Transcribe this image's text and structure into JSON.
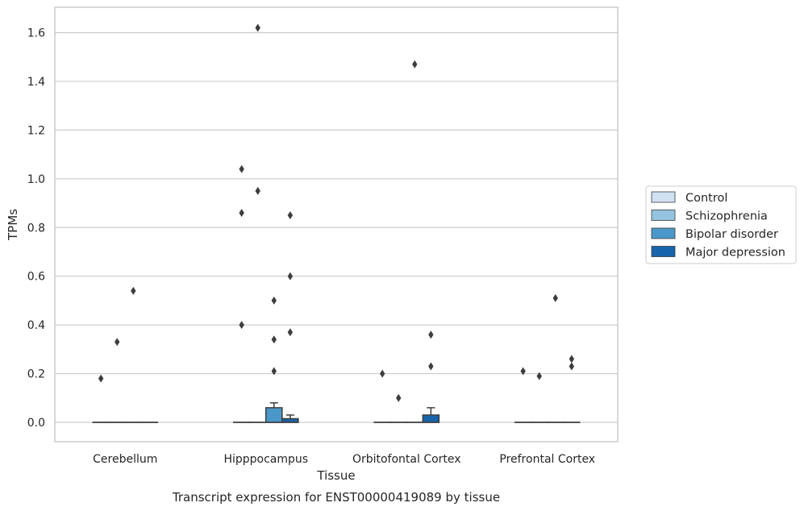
{
  "chart_data": {
    "type": "box",
    "title": "",
    "caption": "Transcript expression for ENST00000419089 by tissue",
    "xlabel": "Tissue",
    "ylabel": "TPMs",
    "ylim": [
      -0.08,
      1.7
    ],
    "yticks": [
      "0.0",
      "0.2",
      "0.4",
      "0.6",
      "0.8",
      "1.0",
      "1.2",
      "1.4",
      "1.6"
    ],
    "ytick_values": [
      0,
      0.2,
      0.4,
      0.6,
      0.8,
      1.0,
      1.2,
      1.4,
      1.6
    ],
    "grid": true,
    "legend_position": "right",
    "categories": [
      "Cerebellum",
      "Hipppocampus",
      "Orbitofontal Cortex",
      "Prefrontal Cortex"
    ],
    "series": [
      {
        "name": "Control",
        "color": "#d0e1f2",
        "boxes": [
          {
            "q1": 0,
            "median": 0,
            "q3": 0,
            "whisker_low": 0,
            "whisker_high": 0,
            "outliers": [
              0.18
            ]
          },
          {
            "q1": 0,
            "median": 0,
            "q3": 0,
            "whisker_low": 0,
            "whisker_high": 0,
            "outliers": [
              1.04,
              0.86,
              0.4
            ]
          },
          {
            "q1": 0,
            "median": 0,
            "q3": 0,
            "whisker_low": 0,
            "whisker_high": 0,
            "outliers": [
              0.2
            ]
          },
          {
            "q1": 0,
            "median": 0,
            "q3": 0,
            "whisker_low": 0,
            "whisker_high": 0,
            "outliers": [
              0.21
            ]
          }
        ]
      },
      {
        "name": "Schizophrenia",
        "color": "#94c4df",
        "boxes": [
          {
            "q1": 0,
            "median": 0,
            "q3": 0,
            "whisker_low": 0,
            "whisker_high": 0,
            "outliers": [
              0.33
            ]
          },
          {
            "q1": 0,
            "median": 0,
            "q3": 0,
            "whisker_low": 0,
            "whisker_high": 0,
            "outliers": [
              1.62,
              0.95
            ]
          },
          {
            "q1": 0,
            "median": 0,
            "q3": 0,
            "whisker_low": 0,
            "whisker_high": 0,
            "outliers": [
              0.1
            ]
          },
          {
            "q1": 0,
            "median": 0,
            "q3": 0,
            "whisker_low": 0,
            "whisker_high": 0,
            "outliers": [
              0.19
            ]
          }
        ]
      },
      {
        "name": "Bipolar disorder",
        "color": "#4a98c9",
        "boxes": [
          {
            "q1": 0,
            "median": 0,
            "q3": 0,
            "whisker_low": 0,
            "whisker_high": 0,
            "outliers": [
              0.54
            ]
          },
          {
            "q1": 0,
            "median": 0,
            "q3": 0.06,
            "whisker_low": 0,
            "whisker_high": 0.08,
            "outliers": [
              0.5,
              0.34,
              0.21
            ]
          },
          {
            "q1": 0,
            "median": 0,
            "q3": 0,
            "whisker_low": 0,
            "whisker_high": 0,
            "outliers": [
              1.47
            ]
          },
          {
            "q1": 0,
            "median": 0,
            "q3": 0,
            "whisker_low": 0,
            "whisker_high": 0,
            "outliers": [
              0.51
            ]
          }
        ]
      },
      {
        "name": "Major depression",
        "color": "#1764ab",
        "boxes": [
          {
            "q1": 0,
            "median": 0,
            "q3": 0,
            "whisker_low": 0,
            "whisker_high": 0,
            "outliers": []
          },
          {
            "q1": 0,
            "median": 0,
            "q3": 0.015,
            "whisker_low": 0,
            "whisker_high": 0.03,
            "outliers": [
              0.85,
              0.6,
              0.37
            ]
          },
          {
            "q1": 0,
            "median": 0,
            "q3": 0.03,
            "whisker_low": 0,
            "whisker_high": 0.06,
            "outliers": [
              0.36,
              0.23
            ]
          },
          {
            "q1": 0,
            "median": 0,
            "q3": 0,
            "whisker_low": 0,
            "whisker_high": 0,
            "outliers": [
              0.26,
              0.23
            ]
          }
        ]
      }
    ]
  }
}
